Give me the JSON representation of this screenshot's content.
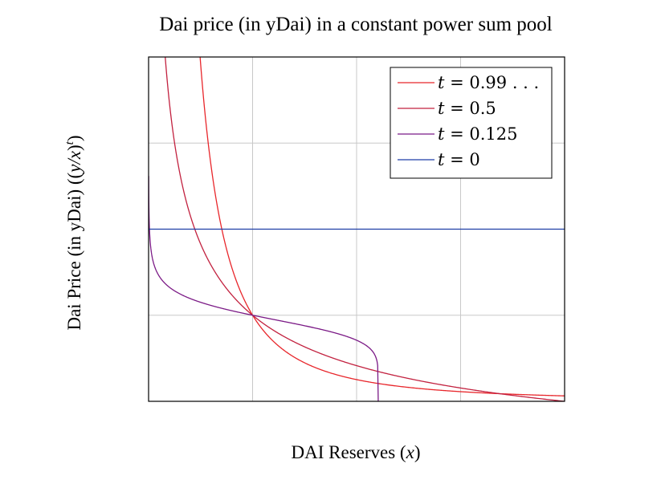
{
  "chart_data": {
    "type": "line",
    "title": "Dai price (in yDai) in a constant power sum pool",
    "xlabel": "DAI Reserves (",
    "xlabel_var": "x",
    "xlabel_close": ")",
    "ylabel": "Dai Price (in yDai) ((",
    "ylabel_var": "y/x",
    "ylabel_close": ")",
    "ylabel_exp": "t",
    "xlim": [
      0,
      2
    ],
    "ylim": [
      0,
      4
    ],
    "x_grid": [
      0.5,
      1.0,
      1.5
    ],
    "y_grid": [
      1,
      2,
      3
    ],
    "grid": true,
    "legend_position": "top-right",
    "series": [
      {
        "name": "t = 0.99...",
        "var": "t",
        "value_text": "= 0.99 . . .",
        "t": 0.99,
        "color": "#e8262b"
      },
      {
        "name": "t = 0.5",
        "var": "t",
        "value_text": "= 0.5",
        "t": 0.5,
        "color": "#c2213f"
      },
      {
        "name": "t = 0.125",
        "var": "t",
        "value_text": "= 0.125",
        "t": 0.125,
        "color": "#7b1a86"
      },
      {
        "name": "t = 0",
        "var": "t",
        "value_text": "= 0",
        "t": 0.0,
        "color": "#1f3fa6"
      }
    ]
  }
}
